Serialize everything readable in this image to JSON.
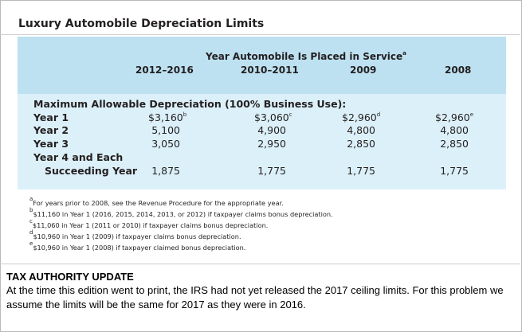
{
  "title": "Luxury Automobile Depreciation Limits",
  "header": {
    "span_label": "Year Automobile Is Placed in Service",
    "span_sup": "a",
    "columns": [
      "2012–2016",
      "2010–2011",
      "2009",
      "2008"
    ]
  },
  "section_label": "Maximum Allowable Depreciation (100% Business Use):",
  "rows": [
    {
      "label": "Year 1",
      "values": [
        "$3,160",
        "$3,060",
        "$2,960",
        "$2,960"
      ],
      "sups": [
        "b",
        "c",
        "d",
        "e"
      ]
    },
    {
      "label": "Year 2",
      "values": [
        "5,100",
        "4,900",
        "4,800",
        "4,800"
      ]
    },
    {
      "label": "Year 3",
      "values": [
        "3,050",
        "2,950",
        "2,850",
        "2,850"
      ]
    },
    {
      "label": "Year 4 and Each",
      "label2": "Succeeding Year",
      "values": [
        "1,875",
        "1,775",
        "1,775",
        "1,775"
      ]
    }
  ],
  "footnotes": [
    {
      "mark": "a",
      "text": "For years prior to 2008, see the Revenue Procedure for the appropriate year."
    },
    {
      "mark": "b",
      "text": "$11,160 in Year 1 (2016, 2015, 2014, 2013, or 2012) if taxpayer claims bonus depreciation."
    },
    {
      "mark": "c",
      "text": "$11,060 in Year 1 (2011 or 2010) if taxpayer claims bonus depreciation."
    },
    {
      "mark": "d",
      "text": "$10,960 in Year 1 (2009) if taxpayer claims bonus depreciation."
    },
    {
      "mark": "e",
      "text": "$10,960 in Year 1 (2008) if taxpayer claimed bonus depreciation."
    }
  ],
  "update": {
    "title": "TAX AUTHORITY UPDATE",
    "body": "At the time this edition went to print, the IRS had not yet released the 2017 ceiling limits. For this problem we assume the limits will be the same for 2017 as they were in 2016."
  },
  "colors": {
    "title": "#3f95c6",
    "header_band": "#bde1f1",
    "body_band": "#dcf0f9"
  }
}
